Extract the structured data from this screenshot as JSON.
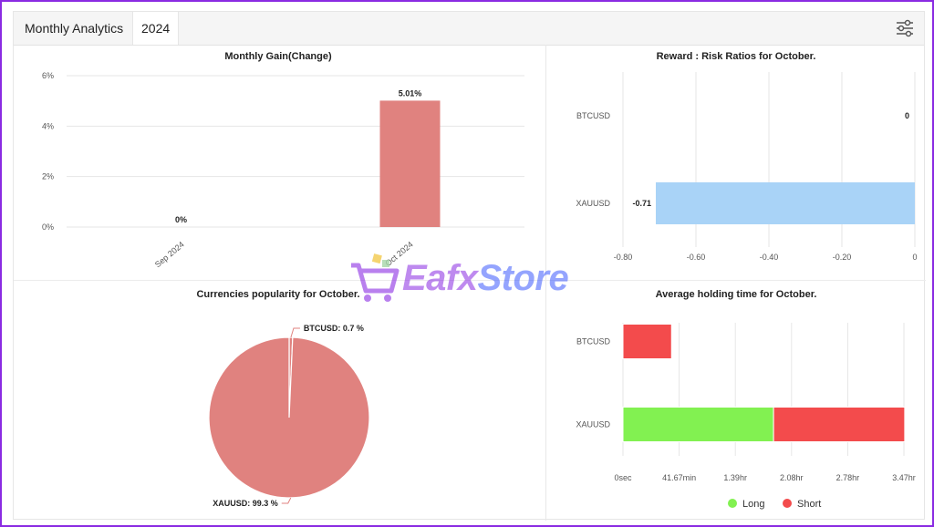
{
  "tabs": {
    "main": "Monthly Analytics",
    "year": "2024"
  },
  "icons": {
    "filter": "sliders-icon",
    "logo": "shopping-cart-icon"
  },
  "watermark": {
    "part1": "Eafx",
    "part2": "Store"
  },
  "chart_data": [
    {
      "id": "monthly_gain",
      "type": "bar",
      "title": "Monthly Gain(Change)",
      "categories": [
        "Sep 2024",
        "Oct 2024"
      ],
      "values": [
        0,
        5.01
      ],
      "value_labels": [
        "0%",
        "5.01%"
      ],
      "ylim": [
        0,
        6
      ],
      "yticks": [
        "0%",
        "2%",
        "4%",
        "6%"
      ],
      "color": "#e0827f",
      "grid": true
    },
    {
      "id": "reward_risk",
      "type": "bar",
      "orientation": "horizontal",
      "title": "Reward : Risk Ratios for October.",
      "categories": [
        "BTCUSD",
        "XAUUSD"
      ],
      "values": [
        0,
        -0.71
      ],
      "value_labels": [
        "0",
        "-0.71"
      ],
      "xlim": [
        -0.8,
        0
      ],
      "xticks": [
        "-0.80",
        "-0.60",
        "-0.40",
        "-0.20",
        "0"
      ],
      "color": "#a9d3f7",
      "grid": true
    },
    {
      "id": "currency_popularity",
      "type": "pie",
      "title": "Currencies popularity for October.",
      "labels": [
        "BTCUSD",
        "XAUUSD"
      ],
      "values": [
        0.7,
        99.3
      ],
      "slice_labels": [
        "BTCUSD: 0.7 %",
        "XAUUSD: 99.3 %"
      ],
      "color": "#e0827f"
    },
    {
      "id": "holding_time",
      "type": "bar",
      "orientation": "horizontal",
      "stacked": true,
      "title": "Average holding time for October.",
      "categories": [
        "BTCUSD",
        "XAUUSD"
      ],
      "xticks": [
        "0sec",
        "41.67min",
        "1.39hr",
        "2.08hr",
        "2.78hr",
        "3.47hr"
      ],
      "xlim_hours": [
        0,
        3.47
      ],
      "series": [
        {
          "name": "Long",
          "color": "#82f151",
          "values_hours": [
            0,
            1.86
          ]
        },
        {
          "name": "Short",
          "color": "#f34b4c",
          "values_hours": [
            0.6,
            1.62
          ]
        }
      ],
      "legend": "bottom",
      "grid": true
    }
  ]
}
